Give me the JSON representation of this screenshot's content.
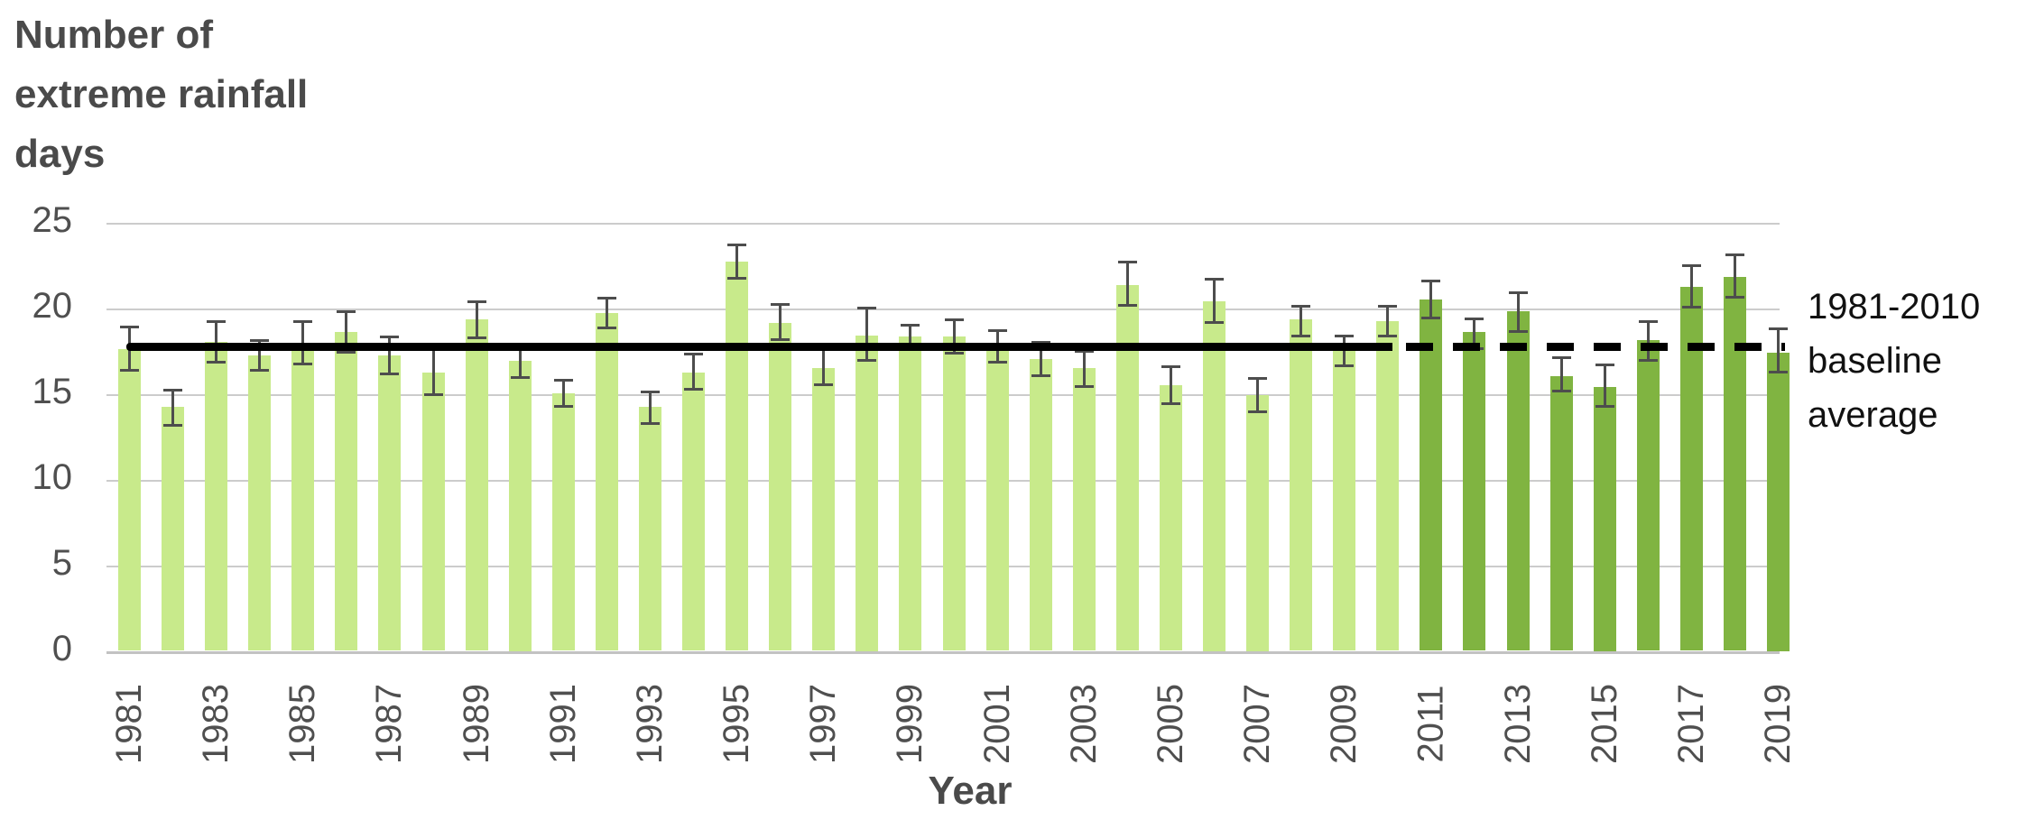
{
  "title": "Number of extreme rainfall days",
  "x_axis_label": "Year",
  "annotation_label": "1981-2010 baseline average",
  "colors": {
    "bar_light": "#c8ea8b",
    "bar_dark": "#80b441",
    "baseline_line": "#000000",
    "gridline": "#cccccc",
    "axis_line": "#c2c2c2",
    "error_bar": "#4d4d4d",
    "title_text": "#4a4a4a",
    "tick_text": "#4f4f4f",
    "annotation_text": "#111111"
  },
  "chart_data": {
    "type": "bar",
    "title": "Number of extreme rainfall days",
    "xlabel": "Year",
    "ylabel": "Number of extreme rainfall days",
    "ylim": [
      0,
      25
    ],
    "yticks": [
      0,
      5,
      10,
      15,
      20,
      25
    ],
    "grid": true,
    "legend": false,
    "xtick_step": 2,
    "categories": [
      1981,
      1982,
      1983,
      1984,
      1985,
      1986,
      1987,
      1988,
      1989,
      1990,
      1991,
      1992,
      1993,
      1994,
      1995,
      1996,
      1997,
      1998,
      1999,
      2000,
      2001,
      2002,
      2003,
      2004,
      2005,
      2006,
      2007,
      2008,
      2009,
      2010,
      2011,
      2012,
      2013,
      2014,
      2015,
      2016,
      2017,
      2018,
      2019
    ],
    "values": [
      17.7,
      14.3,
      18.1,
      17.3,
      17.8,
      18.7,
      17.3,
      16.3,
      19.4,
      17.0,
      15.1,
      19.8,
      14.3,
      16.3,
      22.8,
      19.2,
      16.6,
      18.5,
      18.4,
      18.4,
      17.9,
      17.1,
      16.6,
      21.4,
      15.6,
      20.5,
      15.0,
      19.4,
      17.6,
      19.3,
      20.6,
      18.7,
      19.9,
      16.1,
      15.5,
      18.2,
      21.3,
      21.9,
      17.5
    ],
    "error_up": [
      1.3,
      1.0,
      1.2,
      0.9,
      1.5,
      1.2,
      1.1,
      1.4,
      1.1,
      0.7,
      0.8,
      0.9,
      0.9,
      1.1,
      1.0,
      1.1,
      1.1,
      1.6,
      0.7,
      1.0,
      0.9,
      1.0,
      1.0,
      1.4,
      1.1,
      1.3,
      1.0,
      0.8,
      0.9,
      0.9,
      1.1,
      0.8,
      1.1,
      1.1,
      1.3,
      1.1,
      1.3,
      1.3,
      1.4
    ],
    "error_down": [
      1.3,
      1.1,
      1.2,
      0.9,
      1.0,
      1.2,
      1.1,
      1.3,
      1.1,
      1.0,
      0.8,
      0.9,
      1.0,
      1.0,
      1.0,
      1.0,
      1.0,
      1.5,
      0.7,
      1.0,
      1.0,
      1.0,
      1.1,
      1.2,
      1.1,
      1.3,
      1.0,
      1.0,
      0.9,
      0.9,
      1.1,
      1.0,
      1.2,
      0.9,
      1.2,
      1.2,
      1.2,
      1.2,
      1.2
    ],
    "series": [
      {
        "name": "1981-2010",
        "color": "#c8ea8b",
        "first_year": 1981,
        "last_year": 2010
      },
      {
        "name": "2011-2019",
        "color": "#80b441",
        "first_year": 2011,
        "last_year": 2019
      }
    ],
    "baseline": {
      "label": "1981-2010 baseline average",
      "value": 17.8,
      "solid_over_years": [
        1981,
        2010
      ],
      "dashed_over_years": [
        2011,
        2019
      ]
    }
  }
}
